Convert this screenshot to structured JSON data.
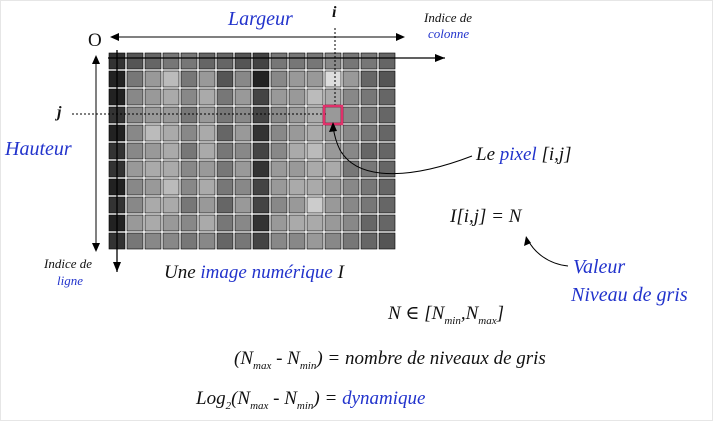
{
  "labels": {
    "largeur": "Largeur",
    "i": "i",
    "indice_colonne_1": "Indice de",
    "indice_colonne_2": "colonne",
    "origin": "O",
    "j": "j",
    "hauteur": "Hauteur",
    "indice_ligne_1": "Indice de",
    "indice_ligne_2": "ligne",
    "le_pixel": "Le ",
    "pixel_word": "pixel",
    "pixel_index": " [i,j]",
    "image_caption_1": "Une ",
    "image_caption_2": "image numérique",
    "image_caption_3": " I",
    "formula_value": "I[i,j] = N",
    "valeur": "Valeur",
    "niveau_de_gris": "Niveau de gris",
    "n_in_prefix": "N ∈  [N",
    "min": "min",
    "n_comma": ",N",
    "max": "max",
    "bracket_close": "]",
    "range_open": "(N",
    "minus_n": "  - N",
    "range_close": ") = nombre de niveaux de gris",
    "log": "Log",
    "log_base": "2",
    "log_open": "(N",
    "log_eq": ") = ",
    "dynamique": "dynamique"
  },
  "grid": {
    "cols": 16,
    "rows": 11,
    "highlight_col": 12,
    "highlight_row": 3,
    "highlight_color": "#e0306a",
    "label_color": "#2233cc",
    "shades": [
      [
        "#333",
        "#555",
        "#666",
        "#777",
        "#777",
        "#666",
        "#666",
        "#555",
        "#444",
        "#777",
        "#777",
        "#777",
        "#888",
        "#777",
        "#777",
        "#666"
      ],
      [
        "#222",
        "#777",
        "#999",
        "#bbb",
        "#777",
        "#999",
        "#555",
        "#888",
        "#222",
        "#888",
        "#999",
        "#999",
        "#ddd",
        "#999",
        "#666",
        "#555"
      ],
      [
        "#222",
        "#888",
        "#999",
        "#aaa",
        "#888",
        "#aaa",
        "#777",
        "#999",
        "#444",
        "#999",
        "#999",
        "#bbb",
        "#aaa",
        "#888",
        "#777",
        "#666"
      ],
      [
        "#333",
        "#888",
        "#999",
        "#999",
        "#777",
        "#999",
        "#777",
        "#888",
        "#444",
        "#888",
        "#999",
        "#aaa",
        "#999",
        "#888",
        "#777",
        "#666"
      ],
      [
        "#222",
        "#888",
        "#bbb",
        "#aaa",
        "#888",
        "#aaa",
        "#666",
        "#999",
        "#333",
        "#888",
        "#999",
        "#aaa",
        "#999",
        "#888",
        "#777",
        "#666"
      ],
      [
        "#333",
        "#888",
        "#999",
        "#aaa",
        "#777",
        "#aaa",
        "#777",
        "#888",
        "#444",
        "#888",
        "#aaa",
        "#bbb",
        "#999",
        "#888",
        "#666",
        "#666"
      ],
      [
        "#333",
        "#999",
        "#aaa",
        "#aaa",
        "#888",
        "#999",
        "#777",
        "#999",
        "#333",
        "#999",
        "#999",
        "#aaa",
        "#aaa",
        "#777",
        "#777",
        "#666"
      ],
      [
        "#222",
        "#888",
        "#999",
        "#bbb",
        "#888",
        "#aaa",
        "#777",
        "#888",
        "#444",
        "#999",
        "#aaa",
        "#aaa",
        "#999",
        "#888",
        "#777",
        "#666"
      ],
      [
        "#333",
        "#888",
        "#aaa",
        "#aaa",
        "#777",
        "#999",
        "#666",
        "#999",
        "#444",
        "#888",
        "#999",
        "#ccc",
        "#999",
        "#888",
        "#777",
        "#666"
      ],
      [
        "#222",
        "#999",
        "#aaa",
        "#999",
        "#888",
        "#aaa",
        "#777",
        "#888",
        "#333",
        "#999",
        "#aaa",
        "#aaa",
        "#999",
        "#888",
        "#666",
        "#666"
      ],
      [
        "#333",
        "#777",
        "#888",
        "#888",
        "#777",
        "#888",
        "#666",
        "#777",
        "#444",
        "#888",
        "#888",
        "#999",
        "#888",
        "#777",
        "#666",
        "#555"
      ]
    ]
  }
}
